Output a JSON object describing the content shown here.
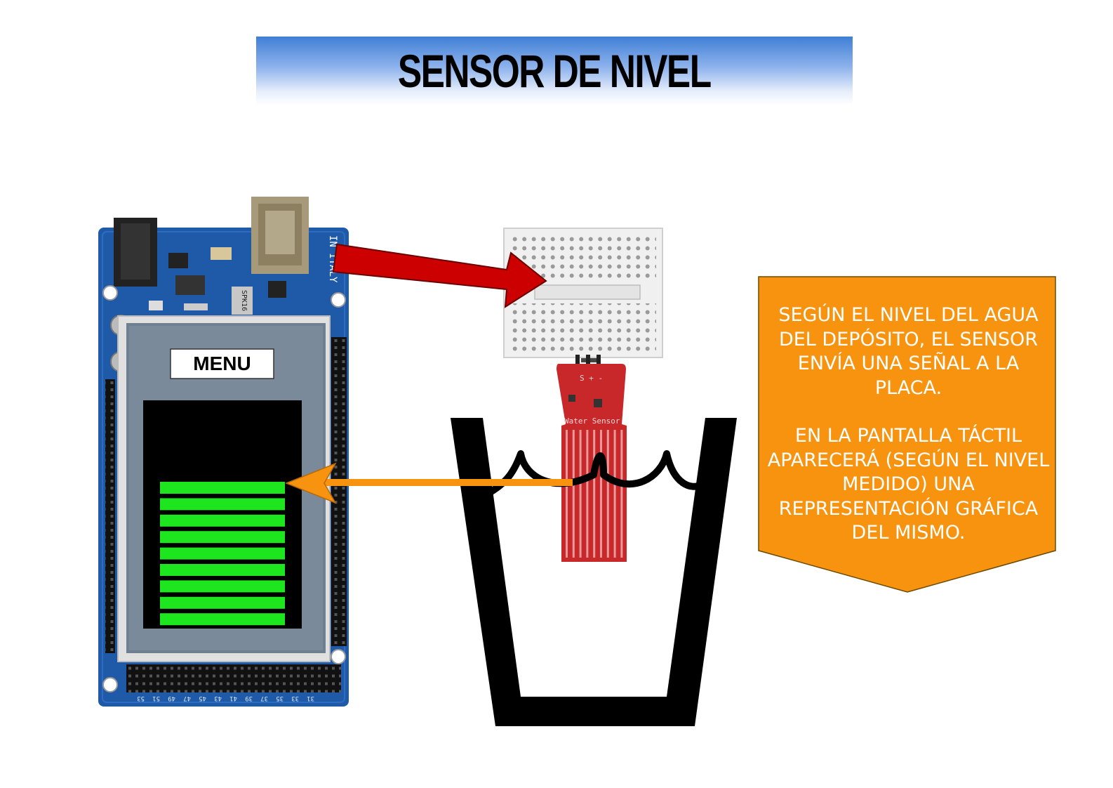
{
  "title": "SENSOR DE NIVEL",
  "board": {
    "made_in": "IN ITALY",
    "chip_label": "SPK16",
    "pin_numbers": [
      "53",
      "51",
      "49",
      "47",
      "45",
      "43",
      "41",
      "39",
      "37",
      "35",
      "33",
      "31"
    ]
  },
  "screen": {
    "menu_label": "MENU",
    "level_bars": 9
  },
  "sensor": {
    "label": "Water Sensor",
    "pins": "S + -"
  },
  "info_box": {
    "paragraph_1": "SEGÚN EL NIVEL DEL AGUA DEL DEPÓSITO, EL SENSOR ENVÍA UNA SEÑAL A LA PLACA.",
    "paragraph_2": "EN LA PANTALLA TÁCTIL APARECERÁ (SEGÚN EL NIVEL MEDIDO) UNA REPRESENTACIÓN GRÁFICA DEL MISMO."
  },
  "colors": {
    "banner_top": "#3f7fd6",
    "info_box": "#f7930e",
    "arrow_red": "#cc0000",
    "arrow_orange": "#f7930e",
    "level_bar": "#1ee61e",
    "board": "#1e5aa8"
  }
}
